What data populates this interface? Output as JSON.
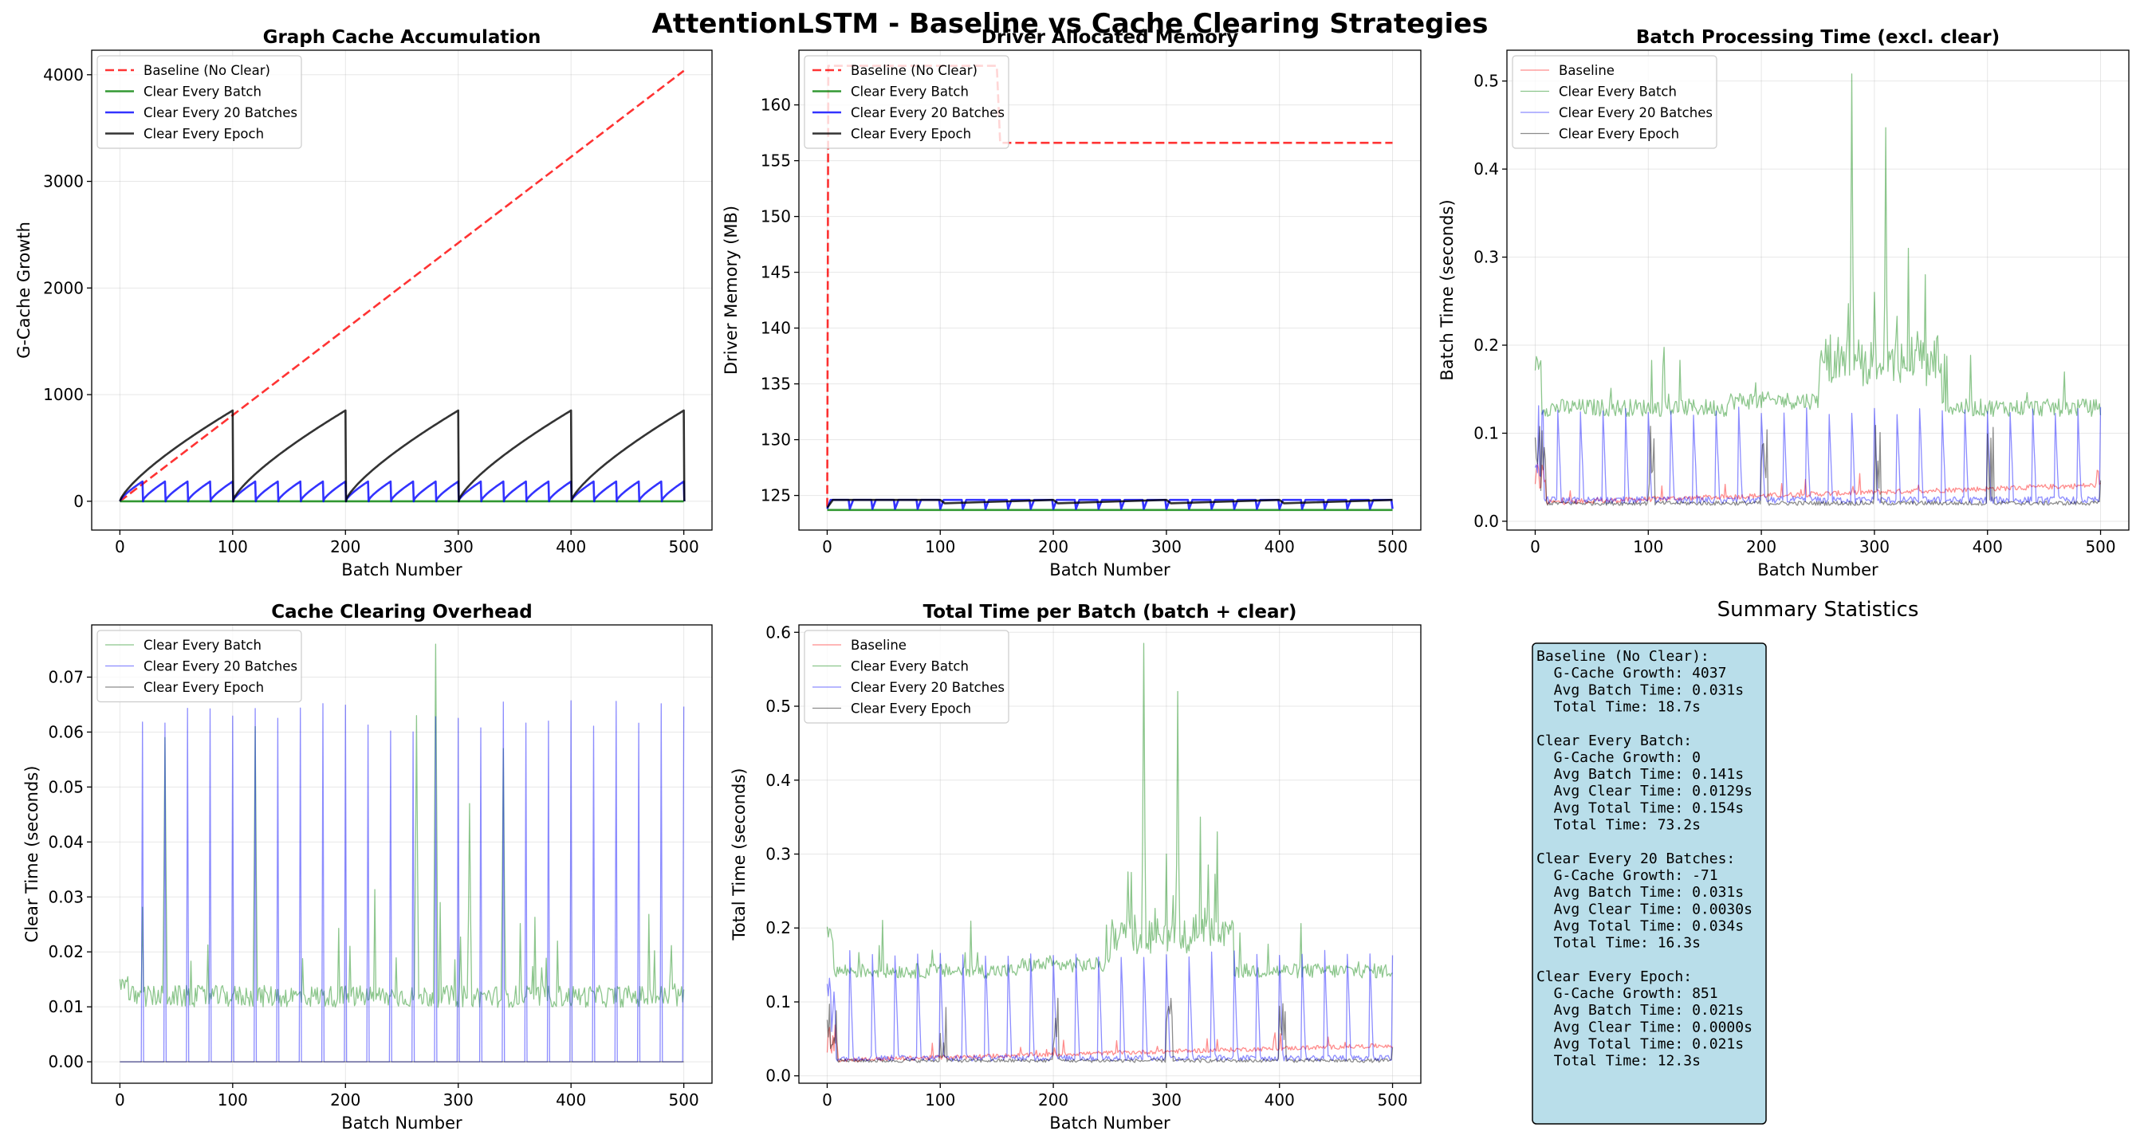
{
  "figure_title": "AttentionLSTM - Baseline vs Cache Clearing Strategies",
  "colors": {
    "baseline": "#ff0000",
    "clear_every_batch": "#008000",
    "clear_every_20": "#0000ff",
    "clear_every_epoch": "#000000",
    "stats_box_fill": "#add8e6"
  },
  "chart_data": [
    {
      "id": "graph_cache",
      "type": "line",
      "title": "Graph Cache Accumulation",
      "xlabel": "Batch Number",
      "ylabel": "G-Cache Growth",
      "xlim": [
        -25,
        525
      ],
      "ylim": [
        -270,
        4230
      ],
      "xticks": [
        0,
        100,
        200,
        300,
        400,
        500
      ],
      "yticks": [
        0,
        1000,
        2000,
        3000,
        4000
      ],
      "grid": true,
      "legend": "top-left",
      "series": [
        {
          "name": "Baseline (No Clear)",
          "style": "dashed",
          "x": [
            0,
            500
          ],
          "y": [
            0,
            4037
          ]
        },
        {
          "name": "Clear Every Batch",
          "style": "solid",
          "x": [
            0,
            500
          ],
          "y": [
            0,
            0
          ]
        },
        {
          "name": "Clear Every 20 Batches",
          "style": "solid",
          "pattern": "sawtooth",
          "period": 20,
          "peak": 185,
          "x_range": [
            0,
            500
          ]
        },
        {
          "name": "Clear Every Epoch",
          "style": "solid",
          "pattern": "sawtooth",
          "period": 100,
          "peak": 851,
          "x_range": [
            0,
            500
          ]
        }
      ]
    },
    {
      "id": "driver_memory",
      "type": "line",
      "title": "Driver Allocated Memory",
      "xlabel": "Batch Number",
      "ylabel": "Driver Memory (MB)",
      "xlim": [
        -25,
        525
      ],
      "ylim": [
        121.9,
        164.9
      ],
      "xticks": [
        0,
        100,
        200,
        300,
        400,
        500
      ],
      "yticks": [
        125,
        130,
        135,
        140,
        145,
        150,
        155,
        160
      ],
      "grid": true,
      "legend": "top-left",
      "series": [
        {
          "name": "Baseline (No Clear)",
          "style": "dashed",
          "x": [
            0,
            1,
            150,
            153,
            500
          ],
          "y": [
            124,
            163.5,
            163.5,
            156.6,
            156.6
          ]
        },
        {
          "name": "Clear Every Batch",
          "style": "solid",
          "x": [
            0,
            500
          ],
          "y": [
            123.7,
            123.7
          ]
        },
        {
          "name": "Clear Every 20 Batches",
          "style": "solid",
          "pattern": "step-saw",
          "period": 20,
          "low": 123.8,
          "high": 124.6
        },
        {
          "name": "Clear Every Epoch",
          "style": "solid",
          "pattern": "steps",
          "x": [
            0,
            5,
            100,
            104,
            200,
            204,
            300,
            304,
            400,
            404,
            500
          ],
          "y": [
            123.9,
            124.6,
            124.6,
            124.3,
            124.6,
            124.3,
            124.6,
            124.3,
            124.6,
            124.3,
            124.6
          ]
        }
      ]
    },
    {
      "id": "batch_time",
      "type": "line",
      "title": "Batch Processing Time (excl. clear)",
      "xlabel": "Batch Number",
      "ylabel": "Batch Time (seconds)",
      "xlim": [
        -25,
        525
      ],
      "ylim": [
        -0.01,
        0.535
      ],
      "xticks": [
        0,
        100,
        200,
        300,
        400,
        500
      ],
      "yticks": [
        0.0,
        0.1,
        0.2,
        0.3,
        0.4,
        0.5
      ],
      "ytick_labels": [
        "0.0",
        "0.1",
        "0.2",
        "0.3",
        "0.4",
        "0.5"
      ],
      "grid": true,
      "legend": "top-left",
      "series": [
        {
          "name": "Baseline",
          "avg": 0.031
        },
        {
          "name": "Clear Every Batch",
          "avg": 0.141,
          "peaks": [
            [
              280,
              0.508
            ],
            [
              310,
              0.447
            ],
            [
              330,
              0.31
            ],
            [
              345,
              0.28
            ],
            [
              300,
              0.26
            ]
          ]
        },
        {
          "name": "Clear Every 20 Batches",
          "avg": 0.031,
          "spike_period": 20,
          "spike_height": 0.12
        },
        {
          "name": "Clear Every Epoch",
          "avg": 0.021
        }
      ]
    },
    {
      "id": "clear_overhead",
      "type": "line",
      "title": "Cache Clearing Overhead",
      "xlabel": "Batch Number",
      "ylabel": "Clear Time (seconds)",
      "xlim": [
        -25,
        525
      ],
      "ylim": [
        -0.0039,
        0.0795
      ],
      "xticks": [
        0,
        100,
        200,
        300,
        400,
        500
      ],
      "yticks": [
        0.0,
        0.01,
        0.02,
        0.03,
        0.04,
        0.05,
        0.06,
        0.07
      ],
      "ytick_labels": [
        "0.00",
        "0.01",
        "0.02",
        "0.03",
        "0.04",
        "0.05",
        "0.06",
        "0.07"
      ],
      "grid": true,
      "legend": "top-left",
      "series": [
        {
          "name": "Clear Every Batch",
          "avg": 0.0129,
          "peaks": [
            [
              280,
              0.076
            ],
            [
              263,
              0.063
            ],
            [
              310,
              0.047
            ],
            [
              340,
              0.057
            ],
            [
              40,
              0.059
            ],
            [
              120,
              0.061
            ]
          ]
        },
        {
          "name": "Clear Every 20 Batches",
          "avg": 0.003,
          "spike_period": 20,
          "spike_height": 0.063
        },
        {
          "name": "Clear Every Epoch",
          "avg": 0.0
        }
      ]
    },
    {
      "id": "total_time",
      "type": "line",
      "title": "Total Time per Batch (batch + clear)",
      "xlabel": "Batch Number",
      "ylabel": "Total Time (seconds)",
      "xlim": [
        -25,
        525
      ],
      "ylim": [
        -0.01,
        0.61
      ],
      "xticks": [
        0,
        100,
        200,
        300,
        400,
        500
      ],
      "yticks": [
        0.0,
        0.1,
        0.2,
        0.3,
        0.4,
        0.5,
        0.6
      ],
      "ytick_labels": [
        "0.0",
        "0.1",
        "0.2",
        "0.3",
        "0.4",
        "0.5",
        "0.6"
      ],
      "grid": true,
      "legend": "top-left",
      "series": [
        {
          "name": "Baseline",
          "avg": 0.031
        },
        {
          "name": "Clear Every Batch",
          "avg": 0.154,
          "peaks": [
            [
              280,
              0.585
            ],
            [
              310,
              0.52
            ],
            [
              330,
              0.35
            ],
            [
              345,
              0.33
            ],
            [
              300,
              0.3
            ]
          ]
        },
        {
          "name": "Clear Every 20 Batches",
          "avg": 0.034,
          "spike_period": 20,
          "spike_height": 0.16
        },
        {
          "name": "Clear Every Epoch",
          "avg": 0.021
        }
      ]
    }
  ],
  "summary": {
    "title": "Summary Statistics",
    "lines": [
      "Baseline (No Clear):",
      "  G-Cache Growth: 4037",
      "  Avg Batch Time: 0.031s",
      "  Total Time: 18.7s",
      "",
      "Clear Every Batch:",
      "  G-Cache Growth: 0",
      "  Avg Batch Time: 0.141s",
      "  Avg Clear Time: 0.0129s",
      "  Avg Total Time: 0.154s",
      "  Total Time: 73.2s",
      "",
      "Clear Every 20 Batches:",
      "  G-Cache Growth: -71",
      "  Avg Batch Time: 0.031s",
      "  Avg Clear Time: 0.0030s",
      "  Avg Total Time: 0.034s",
      "  Total Time: 16.3s",
      "",
      "Clear Every Epoch:",
      "  G-Cache Growth: 851",
      "  Avg Batch Time: 0.021s",
      "  Avg Clear Time: 0.0000s",
      "  Avg Total Time: 0.021s",
      "  Total Time: 12.3s"
    ]
  }
}
